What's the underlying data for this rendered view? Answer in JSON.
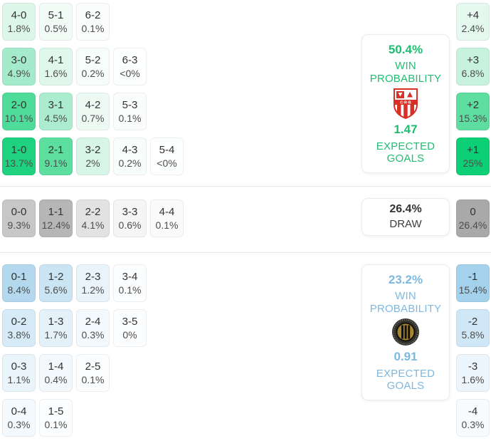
{
  "accents": {
    "home_green": "#1fbd70",
    "away_blue": "#7db9de",
    "draw_gray": "#a9a9a9"
  },
  "home_panel": {
    "probability": "50.4%",
    "label_line1": "WIN",
    "label_line2": "PROBABILITY",
    "expected_goals": "1.47",
    "goals_label_line1": "EXPECTED",
    "goals_label_line2": "GOALS",
    "team_logo": "red-white-shield-crest"
  },
  "draw_panel": {
    "probability": "26.4%",
    "label": "DRAW"
  },
  "away_panel": {
    "probability": "23.2%",
    "label_line1": "WIN",
    "label_line2": "PROBABILITY",
    "expected_goals": "0.91",
    "goals_label_line1": "EXPECTED",
    "goals_label_line2": "GOALS",
    "team_logo": "black-gold-circular-crest"
  },
  "grids": {
    "home": {
      "rows": [
        {
          "cells": [
            {
              "score": "4-0",
              "pct": "1.8%",
              "bg": "#dcf7ea"
            },
            {
              "score": "5-1",
              "pct": "0.5%",
              "bg": "#f1fcf7"
            },
            {
              "score": "6-2",
              "pct": "0.1%",
              "bg": "#fafdfc"
            }
          ]
        },
        {
          "cells": [
            {
              "score": "3-0",
              "pct": "4.9%",
              "bg": "#a3ebca"
            },
            {
              "score": "4-1",
              "pct": "1.6%",
              "bg": "#dff8eb"
            },
            {
              "score": "5-2",
              "pct": "0.2%",
              "bg": "#f7fdfa"
            },
            {
              "score": "6-3",
              "pct": "<0%",
              "bg": "#fdfefe"
            }
          ]
        },
        {
          "cells": [
            {
              "score": "2-0",
              "pct": "10.1%",
              "bg": "#4fdb9a"
            },
            {
              "score": "3-1",
              "pct": "4.5%",
              "bg": "#acecce"
            },
            {
              "score": "4-2",
              "pct": "0.7%",
              "bg": "#edfaf4"
            },
            {
              "score": "5-3",
              "pct": "0.1%",
              "bg": "#fafdfc"
            }
          ]
        },
        {
          "cells": [
            {
              "score": "1-0",
              "pct": "13.7%",
              "bg": "#1ed27f"
            },
            {
              "score": "2-1",
              "pct": "9.1%",
              "bg": "#5cde9f"
            },
            {
              "score": "3-2",
              "pct": "2%",
              "bg": "#d7f6e7"
            },
            {
              "score": "4-3",
              "pct": "0.2%",
              "bg": "#f7fdfa"
            },
            {
              "score": "5-4",
              "pct": "<0%",
              "bg": "#fdfefe"
            }
          ]
        }
      ]
    },
    "draw": {
      "cells": [
        {
          "score": "0-0",
          "pct": "9.3%",
          "bg": "#c7c7c7"
        },
        {
          "score": "1-1",
          "pct": "12.4%",
          "bg": "#b6b6b6"
        },
        {
          "score": "2-2",
          "pct": "4.1%",
          "bg": "#e2e2e2"
        },
        {
          "score": "3-3",
          "pct": "0.6%",
          "bg": "#f5f5f5"
        },
        {
          "score": "4-4",
          "pct": "0.1%",
          "bg": "#fafafa"
        }
      ]
    },
    "away": {
      "rows": [
        {
          "cells": [
            {
              "score": "0-1",
              "pct": "8.4%",
              "bg": "#b4d9ef"
            },
            {
              "score": "1-2",
              "pct": "5.6%",
              "bg": "#cbe4f4"
            },
            {
              "score": "2-3",
              "pct": "1.2%",
              "bg": "#e9f3fa"
            },
            {
              "score": "3-4",
              "pct": "0.1%",
              "bg": "#fbfdfe"
            }
          ]
        },
        {
          "cells": [
            {
              "score": "0-2",
              "pct": "3.8%",
              "bg": "#d6ebf7"
            },
            {
              "score": "1-3",
              "pct": "1.7%",
              "bg": "#e4f1f9"
            },
            {
              "score": "2-4",
              "pct": "0.3%",
              "bg": "#f4f9fd"
            },
            {
              "score": "3-5",
              "pct": "0%",
              "bg": "#fcfdfe"
            }
          ]
        },
        {
          "cells": [
            {
              "score": "0-3",
              "pct": "1.1%",
              "bg": "#eaf4fb"
            },
            {
              "score": "1-4",
              "pct": "0.4%",
              "bg": "#f3f8fc"
            },
            {
              "score": "2-5",
              "pct": "0.1%",
              "bg": "#fbfdfe"
            }
          ]
        },
        {
          "cells": [
            {
              "score": "0-4",
              "pct": "0.3%",
              "bg": "#f4f9fd"
            },
            {
              "score": "1-5",
              "pct": "0.1%",
              "bg": "#fbfdfe"
            }
          ]
        }
      ]
    }
  },
  "goal_diff_column": {
    "home": [
      {
        "diff": "+4",
        "pct": "2.4%",
        "bg": "#e5f8ef"
      },
      {
        "diff": "+3",
        "pct": "6.8%",
        "bg": "#c6f2de"
      },
      {
        "diff": "+2",
        "pct": "15.3%",
        "bg": "#5edda1"
      },
      {
        "diff": "+1",
        "pct": "25%",
        "bg": "#0dcf76"
      }
    ],
    "draw": {
      "diff": "0",
      "pct": "26.4%",
      "bg": "#a9a9a9"
    },
    "away": [
      {
        "diff": "-1",
        "pct": "15.4%",
        "bg": "#a4d2ec"
      },
      {
        "diff": "-2",
        "pct": "5.8%",
        "bg": "#cfe7f6"
      },
      {
        "diff": "-3",
        "pct": "1.6%",
        "bg": "#ecf5fb"
      },
      {
        "diff": "-4",
        "pct": "0.3%",
        "bg": "#f7fbfd"
      }
    ]
  }
}
